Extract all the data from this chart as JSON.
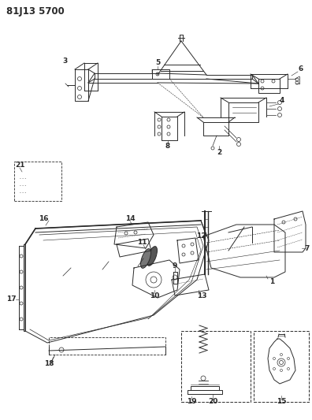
{
  "title": "81J13 5700",
  "bg_color": "#ffffff",
  "line_color": "#2a2a2a",
  "fig_width": 3.96,
  "fig_height": 5.33,
  "dpi": 100
}
